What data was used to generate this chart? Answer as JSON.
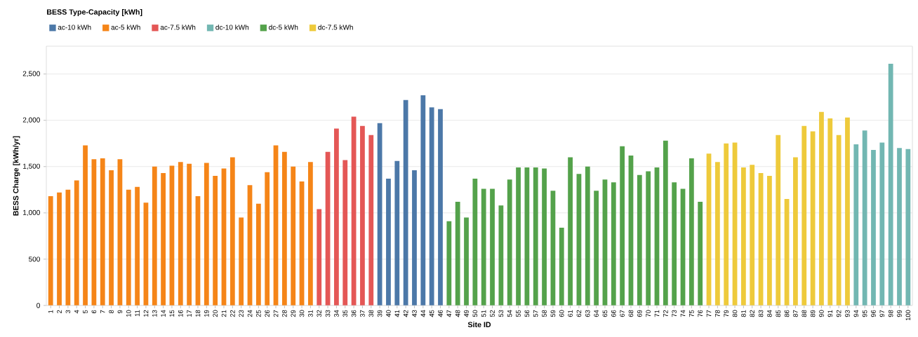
{
  "chart_data": {
    "type": "bar",
    "xlabel": "Site ID",
    "ylabel": "BESS Charge [kWh/yr]",
    "legend_title": "BESS Type-Capacity [kWh]",
    "legend": "top left",
    "grid": "y",
    "ylim": [
      0,
      2800
    ],
    "yticks": [
      0,
      500,
      {
        "value": 1000,
        "label": "1,000"
      },
      {
        "value": 1500,
        "label": "1,500"
      },
      {
        "value": 2000,
        "label": "2,000"
      },
      {
        "value": 2500,
        "label": "2,500"
      }
    ],
    "categories": [
      "1",
      "2",
      "3",
      "4",
      "5",
      "6",
      "7",
      "8",
      "9",
      "10",
      "11",
      "12",
      "13",
      "14",
      "15",
      "16",
      "17",
      "18",
      "19",
      "20",
      "21",
      "22",
      "23",
      "24",
      "25",
      "26",
      "27",
      "28",
      "29",
      "30",
      "31",
      "32",
      "33",
      "34",
      "35",
      "36",
      "37",
      "38",
      "39",
      "40",
      "41",
      "42",
      "43",
      "44",
      "45",
      "46",
      "47",
      "48",
      "49",
      "50",
      "51",
      "52",
      "53",
      "54",
      "55",
      "56",
      "57",
      "58",
      "59",
      "60",
      "61",
      "62",
      "63",
      "64",
      "65",
      "66",
      "67",
      "68",
      "69",
      "70",
      "71",
      "72",
      "73",
      "74",
      "75",
      "76",
      "77",
      "78",
      "79",
      "80",
      "81",
      "82",
      "83",
      "84",
      "85",
      "86",
      "87",
      "88",
      "89",
      "90",
      "91",
      "92",
      "93",
      "94",
      "95",
      "96",
      "97",
      "98",
      "99",
      "100"
    ],
    "series": [
      {
        "name": "ac-10 kWh",
        "color": "#4c78a8",
        "values": [
          null,
          null,
          null,
          null,
          null,
          null,
          null,
          null,
          null,
          null,
          null,
          null,
          null,
          null,
          null,
          null,
          null,
          null,
          null,
          null,
          null,
          null,
          null,
          null,
          null,
          null,
          null,
          null,
          null,
          null,
          null,
          null,
          null,
          null,
          null,
          null,
          null,
          null,
          1970,
          1370,
          1560,
          2220,
          1460,
          2270,
          2140,
          2120,
          null,
          null,
          null,
          null,
          null,
          null,
          null,
          null,
          null,
          null,
          null,
          null,
          null,
          null,
          null,
          null,
          null,
          null,
          null,
          null,
          null,
          null,
          null,
          null,
          null,
          null,
          null,
          null,
          null,
          null,
          null,
          null,
          null,
          null,
          null,
          null,
          null,
          null,
          null,
          null,
          null,
          null,
          null,
          null,
          null,
          null,
          null,
          null,
          null,
          null,
          null,
          null,
          null,
          null
        ]
      },
      {
        "name": "ac-5 kWh",
        "color": "#f58518",
        "values": [
          1180,
          1220,
          1250,
          1350,
          1730,
          1580,
          1590,
          1460,
          1580,
          1250,
          1280,
          1110,
          1500,
          1430,
          1510,
          1550,
          1530,
          1180,
          1540,
          1400,
          1480,
          1600,
          950,
          1300,
          1100,
          1440,
          1730,
          1660,
          1500,
          1340,
          1550,
          null,
          null,
          null,
          null,
          null,
          null,
          null,
          null,
          null,
          null,
          null,
          null,
          null,
          null,
          null,
          null,
          null,
          null,
          null,
          null,
          null,
          null,
          null,
          null,
          null,
          null,
          null,
          null,
          null,
          null,
          null,
          null,
          null,
          null,
          null,
          null,
          null,
          null,
          null,
          null,
          null,
          null,
          null,
          null,
          null,
          null,
          null,
          null,
          null,
          null,
          null,
          null,
          null,
          null,
          null,
          null,
          null,
          null,
          null,
          null,
          null,
          null,
          null,
          null,
          null,
          null,
          null,
          null,
          null
        ]
      },
      {
        "name": "ac-7.5 kWh",
        "color": "#e45756",
        "values": [
          null,
          null,
          null,
          null,
          null,
          null,
          null,
          null,
          null,
          null,
          null,
          null,
          null,
          null,
          null,
          null,
          null,
          null,
          null,
          null,
          null,
          null,
          null,
          null,
          null,
          null,
          null,
          null,
          null,
          null,
          null,
          1040,
          1660,
          1910,
          1570,
          2040,
          1940,
          1840,
          null,
          null,
          null,
          null,
          null,
          null,
          null,
          null,
          null,
          null,
          null,
          null,
          null,
          null,
          null,
          null,
          null,
          null,
          null,
          null,
          null,
          null,
          null,
          null,
          null,
          null,
          null,
          null,
          null,
          null,
          null,
          null,
          null,
          null,
          null,
          null,
          null,
          null,
          null,
          null,
          null,
          null,
          null,
          null,
          null,
          null,
          null,
          null,
          null,
          null,
          null,
          null,
          null,
          null,
          null,
          null,
          null,
          null,
          null,
          null,
          null,
          null
        ]
      },
      {
        "name": "dc-10 kWh",
        "color": "#72b7b2",
        "values": [
          null,
          null,
          null,
          null,
          null,
          null,
          null,
          null,
          null,
          null,
          null,
          null,
          null,
          null,
          null,
          null,
          null,
          null,
          null,
          null,
          null,
          null,
          null,
          null,
          null,
          null,
          null,
          null,
          null,
          null,
          null,
          null,
          null,
          null,
          null,
          null,
          null,
          null,
          null,
          null,
          null,
          null,
          null,
          null,
          null,
          null,
          null,
          null,
          null,
          null,
          null,
          null,
          null,
          null,
          null,
          null,
          null,
          null,
          null,
          null,
          null,
          null,
          null,
          null,
          null,
          null,
          null,
          null,
          null,
          null,
          null,
          null,
          null,
          null,
          null,
          null,
          null,
          null,
          null,
          null,
          null,
          null,
          null,
          null,
          null,
          null,
          null,
          null,
          null,
          null,
          null,
          null,
          null,
          1740,
          1890,
          1680,
          1760,
          2610,
          1700,
          1690
        ]
      },
      {
        "name": "dc-5 kWh",
        "color": "#54a24b",
        "values": [
          null,
          null,
          null,
          null,
          null,
          null,
          null,
          null,
          null,
          null,
          null,
          null,
          null,
          null,
          null,
          null,
          null,
          null,
          null,
          null,
          null,
          null,
          null,
          null,
          null,
          null,
          null,
          null,
          null,
          null,
          null,
          null,
          null,
          null,
          null,
          null,
          null,
          null,
          null,
          null,
          null,
          null,
          null,
          null,
          null,
          null,
          910,
          1120,
          950,
          1370,
          1260,
          1260,
          1080,
          1360,
          1490,
          1490,
          1490,
          1480,
          1240,
          840,
          1600,
          1420,
          1500,
          1240,
          1360,
          1330,
          1720,
          1620,
          1410,
          1450,
          1490,
          1780,
          1330,
          1260,
          1590,
          1120,
          null,
          null,
          null,
          null,
          null,
          null,
          null,
          null,
          null,
          null,
          null,
          null,
          null,
          null,
          null,
          null,
          null,
          null,
          null,
          null,
          null,
          null,
          null,
          null
        ]
      },
      {
        "name": "dc-7.5 kWh",
        "color": "#eeca3b",
        "values": [
          null,
          null,
          null,
          null,
          null,
          null,
          null,
          null,
          null,
          null,
          null,
          null,
          null,
          null,
          null,
          null,
          null,
          null,
          null,
          null,
          null,
          null,
          null,
          null,
          null,
          null,
          null,
          null,
          null,
          null,
          null,
          null,
          null,
          null,
          null,
          null,
          null,
          null,
          null,
          null,
          null,
          null,
          null,
          null,
          null,
          null,
          null,
          null,
          null,
          null,
          null,
          null,
          null,
          null,
          null,
          null,
          null,
          null,
          null,
          null,
          null,
          null,
          null,
          null,
          null,
          null,
          null,
          null,
          null,
          null,
          null,
          null,
          null,
          null,
          null,
          null,
          1640,
          1550,
          1750,
          1760,
          1490,
          1520,
          1430,
          1400,
          1840,
          1150,
          1600,
          1940,
          1880,
          2090,
          2020,
          1840,
          2030,
          null,
          null,
          null,
          null,
          null,
          null,
          null
        ]
      }
    ]
  }
}
